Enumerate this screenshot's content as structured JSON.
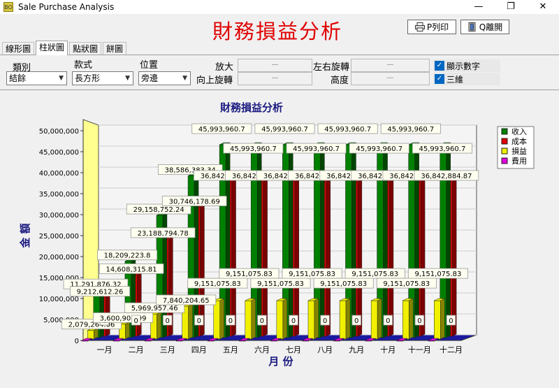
{
  "window": {
    "title": "Sale Purchase Analysis",
    "app_icon_text": "BO",
    "minimize": "—",
    "maximize": "❐",
    "close": "✕"
  },
  "header": {
    "title": "財務損益分析",
    "print_label": "P列印",
    "exit_label": "Q離開"
  },
  "tabs": [
    {
      "label": "線形圖"
    },
    {
      "label": "柱狀圖"
    },
    {
      "label": "點狀圖"
    },
    {
      "label": "餅圖"
    }
  ],
  "controls": {
    "category_label": "類別",
    "category_value": "結餘",
    "style_label": "款式",
    "style_value": "長方形",
    "position_label": "位置",
    "position_value": "旁邊",
    "zoom_label": "放大",
    "vrotate_label": "向上旋轉",
    "hrotate_label": "左右旋轉",
    "height_label": "高度",
    "slider_value": "—",
    "show_numbers_label": "顯示數字",
    "three_d_label": "三維"
  },
  "chart_data": {
    "type": "bar",
    "title": "財務損益分析",
    "xlabel": "月 份",
    "ylabel": "金 額",
    "ylim": [
      0,
      50000000
    ],
    "yticks": [
      "0",
      "5,000,000",
      "10,000,000",
      "15,000,000",
      "20,000,000",
      "25,000,000",
      "30,000,000",
      "35,000,000",
      "40,000,000",
      "45,000,000",
      "50,000,000"
    ],
    "categories": [
      "一月",
      "二月",
      "三月",
      "四月",
      "五月",
      "六月",
      "七月",
      "八月",
      "九月",
      "十月",
      "十一月",
      "十二月"
    ],
    "series": [
      {
        "name": "收入",
        "color": "#008000",
        "values": [
          11291876.32,
          18209223.8,
          29158752.24,
          38586383.34,
          45993960.7,
          45993960.7,
          45993960.7,
          45993960.7,
          45993960.7,
          45993960.7,
          45993960.7,
          45993960.7
        ],
        "labels": [
          "11,291,876.32",
          "18,209,223.8",
          "29,158,752.24",
          "38,586,383.34",
          "45,993,960.7",
          "45,993,960.7",
          "45,993,960.7",
          "45,993,960.7",
          "45,993,960.7",
          "45,993,960.7",
          "45,993,960.7",
          "45,993,960.7"
        ]
      },
      {
        "name": "成本",
        "color": "#e00000",
        "values": [
          9212612.26,
          14608315.81,
          23188794.78,
          30746178.69,
          36842884.87,
          36842884.87,
          36842884.87,
          36842884.87,
          36842884.87,
          36842884.87,
          36842884.87,
          36842884.87
        ],
        "labels": [
          "9,212,612.26",
          "14,608,315.81",
          "23,188,794.78",
          "30,746,178.69",
          "36,842,884.87",
          "36,842,884.87",
          "36,842,884.87",
          "36,842,884.87",
          "36,842,884.87",
          "36,842,884.87",
          "36,842,884.87",
          "36,842,884.87"
        ]
      },
      {
        "name": "損益",
        "color": "#f0f000",
        "values": [
          2079264.06,
          3600907.99,
          5969957.46,
          7840204.65,
          9151075.83,
          9151075.83,
          9151075.83,
          9151075.83,
          9151075.83,
          9151075.83,
          9151075.83,
          9151075.83
        ],
        "labels": [
          "2,079,264.06",
          "3,600,907.99",
          "5,969,957.46",
          "7,840,204.65",
          "9,151,075.83",
          "9,151,075.83",
          "9,151,075.83",
          "9,151,075.83",
          "9,151,075.83",
          "9,151,075.83",
          "9,151,075.83",
          "9,151,075.83"
        ]
      },
      {
        "name": "費用",
        "color": "#e000e0",
        "values": [
          0,
          0,
          0,
          0,
          0,
          0,
          0,
          0,
          0,
          0,
          0,
          0
        ],
        "labels": [
          "0",
          "0",
          "0",
          "0",
          "0",
          "0",
          "0",
          "0",
          "0",
          "0",
          "0",
          "0"
        ]
      }
    ],
    "legend": "right",
    "three_d": true,
    "grid": true
  }
}
